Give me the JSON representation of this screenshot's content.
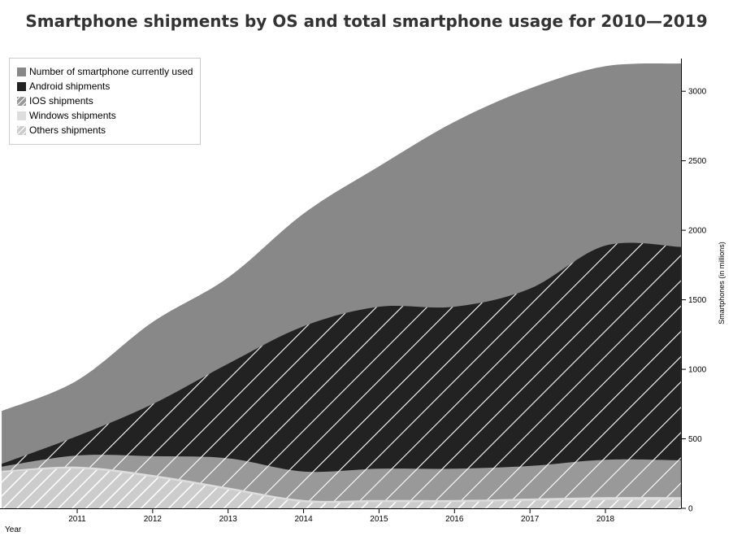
{
  "chart_data": {
    "type": "area",
    "title": "Smartphone shipments by OS and total smartphone usage for 2010—2019",
    "xlabel": "Year",
    "ylabel": "Smartphones (in millions)",
    "x": [
      2010,
      2011,
      2012,
      2013,
      2014,
      2015,
      2016,
      2017,
      2018,
      2019
    ],
    "xlim": [
      2010.1,
      2019.0
    ],
    "ylim": [
      0,
      3200
    ],
    "x_ticks": [
      2011,
      2012,
      2013,
      2014,
      2015,
      2016,
      2017,
      2018
    ],
    "y_ticks": [
      0,
      500,
      1000,
      1500,
      2000,
      2500,
      3000
    ],
    "legend_position": "top-left",
    "series": [
      {
        "name": "Number of smartphone currently used",
        "values": [
          700,
          920,
          1340,
          1660,
          2120,
          2460,
          2780,
          3020,
          3180,
          3200
        ],
        "color": "#888888",
        "pattern": "none"
      },
      {
        "name": "Android shipments",
        "values": [
          320,
          520,
          750,
          1040,
          1310,
          1450,
          1450,
          1580,
          1890,
          1880
        ],
        "color": "#222222",
        "pattern": "hatch-light"
      },
      {
        "name": "IOS shipments",
        "values": [
          300,
          380,
          375,
          360,
          265,
          285,
          285,
          305,
          350,
          345
        ],
        "color": "#999999",
        "pattern": "hatch-light"
      },
      {
        "name": "Windows shipments",
        "values": [
          270,
          300,
          240,
          150,
          60,
          60,
          60,
          70,
          80,
          80
        ],
        "color": "#dddddd",
        "pattern": "none"
      },
      {
        "name": "Others shipments",
        "values": [
          260,
          285,
          225,
          135,
          45,
          45,
          45,
          55,
          60,
          60
        ],
        "color": "#cccccc",
        "pattern": "hatch-dark"
      }
    ]
  }
}
